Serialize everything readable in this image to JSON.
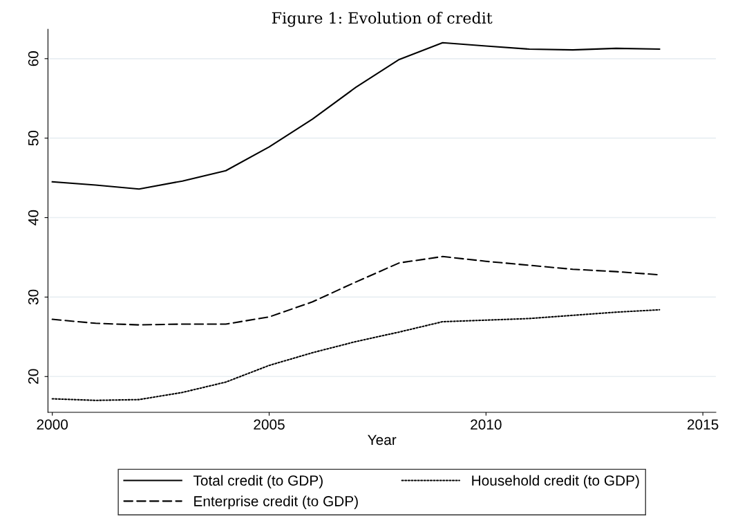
{
  "chart_data": {
    "type": "line",
    "title": "Figure 1: Evolution of credit",
    "xlabel": "Year",
    "x": [
      2000,
      2001,
      2002,
      2003,
      2004,
      2005,
      2006,
      2007,
      2008,
      2009,
      2010,
      2011,
      2012,
      2013,
      2014
    ],
    "series": [
      {
        "name": "Total credit (to GDP)",
        "color": "#000000",
        "line_style": "solid",
        "values": [
          44.5,
          44.1,
          43.6,
          44.6,
          45.9,
          48.9,
          52.4,
          56.4,
          59.9,
          62.0,
          61.6,
          61.2,
          61.1,
          61.3,
          61.2
        ]
      },
      {
        "name": "Enterprise credit (to GDP)",
        "color": "#000000",
        "line_style": "dashed",
        "values": [
          27.2,
          26.7,
          26.5,
          26.6,
          26.6,
          27.5,
          29.4,
          31.9,
          34.3,
          35.1,
          34.5,
          34.0,
          33.5,
          33.2,
          32.8
        ]
      },
      {
        "name": "Household credit (to GDP)",
        "color": "#000000",
        "line_style": "dotted",
        "values": [
          17.2,
          17.0,
          17.1,
          18.0,
          19.3,
          21.4,
          23.0,
          24.4,
          25.6,
          26.9,
          27.1,
          27.3,
          27.7,
          28.1,
          28.4
        ]
      }
    ],
    "xlim": [
      1999.9,
      2015.3
    ],
    "xticks": [
      2000,
      2005,
      2010,
      2015
    ],
    "ylim": [
      15.5,
      63.7
    ],
    "yticks": [
      20,
      30,
      40,
      50,
      60
    ],
    "grid": "y",
    "legend": "bottom",
    "marker": "none"
  }
}
